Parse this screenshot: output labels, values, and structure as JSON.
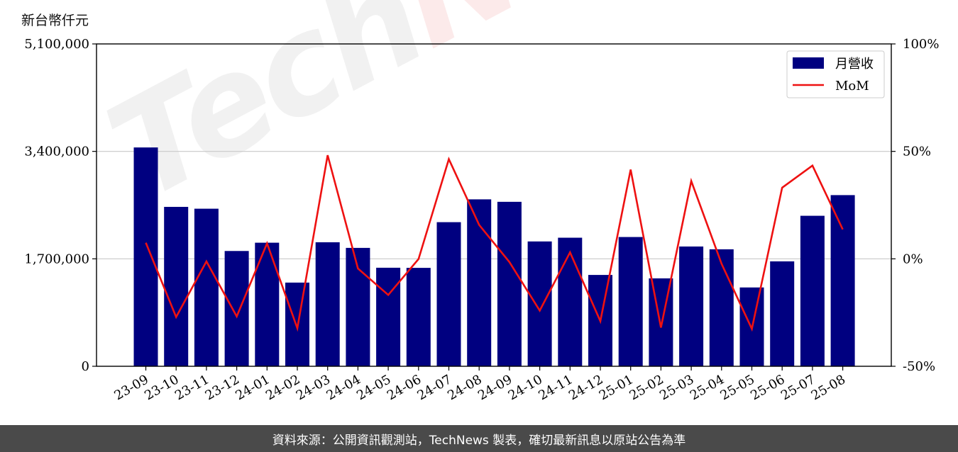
{
  "unit_label": "新台幣仟元",
  "footer": "資料來源：公開資訊觀測站，TechNews 製表，確切最新訊息以原站公告為準",
  "watermark": {
    "part_a": "Tech",
    "part_b": "News"
  },
  "colors": {
    "bar": "#000080",
    "line": "#ee1111",
    "grid": "#c8c8c8"
  },
  "chart_data": {
    "type": "bar",
    "categories": [
      "23-09",
      "23-10",
      "23-11",
      "23-12",
      "24-01",
      "24-02",
      "24-03",
      "24-04",
      "24-05",
      "24-06",
      "24-07",
      "24-08",
      "24-09",
      "24-10",
      "24-11",
      "24-12",
      "25-01",
      "25-02",
      "25-03",
      "25-04",
      "25-05",
      "25-06",
      "25-07",
      "25-08"
    ],
    "series": [
      {
        "name": "月營收",
        "type": "bar",
        "axis": "left",
        "values": [
          3462000,
          2522000,
          2493000,
          1824000,
          1955000,
          1324000,
          1962000,
          1873000,
          1559000,
          1557000,
          2280000,
          2641000,
          2602000,
          1975000,
          2034000,
          1445000,
          2045000,
          1391000,
          1895000,
          1851000,
          1247000,
          1660000,
          2381000,
          2708000
        ]
      },
      {
        "name": "MoM",
        "type": "line",
        "axis": "right",
        "values": [
          7.5,
          -27.1,
          -1.2,
          -26.8,
          7.2,
          -32.3,
          48.2,
          -4.5,
          -16.8,
          -0.1,
          46.4,
          15.8,
          -1.5,
          -24.1,
          3.0,
          -29.0,
          41.5,
          -32.0,
          36.2,
          -2.3,
          -32.6,
          33.1,
          43.4,
          13.7
        ]
      }
    ],
    "y_left": {
      "min": 0,
      "max": 5100000,
      "ticks": [
        "0",
        "1,700,000",
        "3,400,000",
        "5,100,000"
      ],
      "tick_values": [
        0,
        1700000,
        3400000,
        5100000
      ]
    },
    "y_right": {
      "min": -50,
      "max": 100,
      "ticks": [
        "-50%",
        "0%",
        "50%",
        "100%"
      ],
      "tick_values": [
        -50,
        0,
        50,
        100
      ]
    },
    "grid": "horizontal",
    "legend": "top-right"
  }
}
